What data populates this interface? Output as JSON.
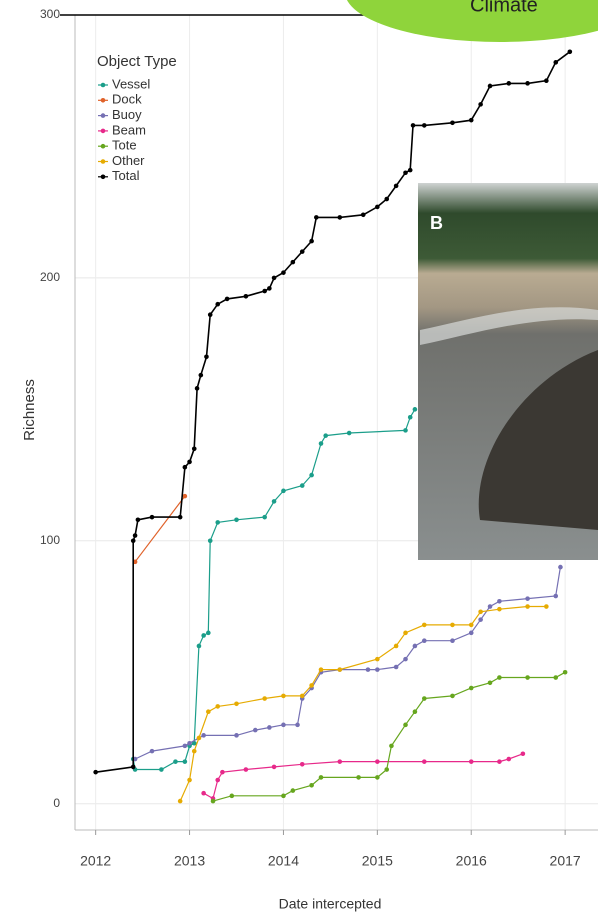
{
  "chart_data": {
    "type": "line",
    "x_label": "Date intercepted",
    "y_label": "Richness",
    "legend_title": "Object Type",
    "annotations": [
      "B",
      "Climate"
    ],
    "xlim": [
      2011.78,
      2017.35
    ],
    "ylim": [
      -10,
      300
    ],
    "xticks": [
      2012,
      2013,
      2014,
      2015,
      2016,
      2017
    ],
    "yticks": [
      0,
      100,
      200,
      300
    ],
    "grid": true,
    "legend_position": "upper left",
    "series": [
      {
        "name": "Vessel",
        "color": "#1b9e8a",
        "x": [
          2012.4,
          2012.42,
          2012.7,
          2012.85,
          2012.95,
          2013.0,
          2013.05,
          2013.1,
          2013.15,
          2013.2,
          2013.22,
          2013.3,
          2013.5,
          2013.8,
          2013.9,
          2014.0,
          2014.2,
          2014.3,
          2014.4,
          2014.45,
          2014.7,
          2015.3,
          2015.35,
          2015.4
        ],
        "values": [
          17,
          13,
          13,
          16,
          16,
          22,
          23,
          60,
          64,
          65,
          100,
          107,
          108,
          109,
          115,
          119,
          121,
          125,
          137,
          140,
          141,
          142,
          147,
          150
        ]
      },
      {
        "name": "Dock",
        "color": "#e0622a",
        "x": [
          2012.42,
          2012.95
        ],
        "values": [
          92,
          117
        ]
      },
      {
        "name": "Buoy",
        "color": "#7570b3",
        "x": [
          2012.42,
          2012.6,
          2012.95,
          2013.0,
          2013.15,
          2013.5,
          2013.7,
          2013.85,
          2014.0,
          2014.15,
          2014.2,
          2014.3,
          2014.4,
          2014.6,
          2014.9,
          2015.0,
          2015.2,
          2015.3,
          2015.4,
          2015.5,
          2015.8,
          2016.0,
          2016.1,
          2016.2,
          2016.3,
          2016.6,
          2016.9,
          2016.95
        ],
        "values": [
          17,
          20,
          22,
          23,
          26,
          26,
          28,
          29,
          30,
          30,
          40,
          44,
          50,
          51,
          51,
          51,
          52,
          55,
          60,
          62,
          62,
          65,
          70,
          75,
          77,
          78,
          79,
          90
        ]
      },
      {
        "name": "Beam",
        "color": "#e7298a",
        "x": [
          2013.15,
          2013.25,
          2013.3,
          2013.35,
          2013.6,
          2013.9,
          2014.2,
          2014.6,
          2015.0,
          2015.5,
          2016.0,
          2016.3,
          2016.4,
          2016.55
        ],
        "values": [
          4,
          2,
          9,
          12,
          13,
          14,
          15,
          16,
          16,
          16,
          16,
          16,
          17,
          19
        ]
      },
      {
        "name": "Tote",
        "color": "#66a61e",
        "x": [
          2013.25,
          2013.45,
          2014.0,
          2014.1,
          2014.3,
          2014.4,
          2014.8,
          2015.0,
          2015.1,
          2015.15,
          2015.3,
          2015.4,
          2015.5,
          2015.8,
          2016.0,
          2016.2,
          2016.3,
          2016.6,
          2016.9,
          2017.0
        ],
        "values": [
          1,
          3,
          3,
          5,
          7,
          10,
          10,
          10,
          13,
          22,
          30,
          35,
          40,
          41,
          44,
          46,
          48,
          48,
          48,
          50
        ]
      },
      {
        "name": "Other",
        "color": "#e6ab02",
        "x": [
          2012.9,
          2013.0,
          2013.05,
          2013.1,
          2013.2,
          2013.3,
          2013.5,
          2013.8,
          2014.0,
          2014.2,
          2014.3,
          2014.4,
          2014.6,
          2015.0,
          2015.2,
          2015.3,
          2015.5,
          2015.8,
          2016.0,
          2016.1,
          2016.3,
          2016.6,
          2016.8
        ],
        "values": [
          1,
          9,
          20,
          25,
          35,
          37,
          38,
          40,
          41,
          41,
          45,
          51,
          51,
          55,
          60,
          65,
          68,
          68,
          68,
          73,
          74,
          75,
          75
        ]
      },
      {
        "name": "Total",
        "color": "#000000",
        "x": [
          2012.0,
          2012.4,
          2012.4,
          2012.42,
          2012.45,
          2012.6,
          2012.9,
          2012.95,
          2013.0,
          2013.05,
          2013.08,
          2013.12,
          2013.18,
          2013.22,
          2013.3,
          2013.4,
          2013.6,
          2013.8,
          2013.85,
          2013.9,
          2014.0,
          2014.1,
          2014.2,
          2014.3,
          2014.35,
          2014.6,
          2014.85,
          2015.0,
          2015.1,
          2015.2,
          2015.3,
          2015.35,
          2015.38,
          2015.5,
          2015.8,
          2016.0,
          2016.1,
          2016.2,
          2016.4,
          2016.6,
          2016.8,
          2016.9,
          2017.05
        ],
        "values": [
          12,
          14,
          100,
          102,
          108,
          109,
          109,
          128,
          130,
          135,
          158,
          163,
          170,
          186,
          190,
          192,
          193,
          195,
          196,
          200,
          202,
          206,
          210,
          214,
          223,
          223,
          224,
          227,
          230,
          235,
          240,
          241,
          258,
          258,
          259,
          260,
          266,
          273,
          274,
          274,
          275,
          282,
          286
        ]
      }
    ]
  }
}
